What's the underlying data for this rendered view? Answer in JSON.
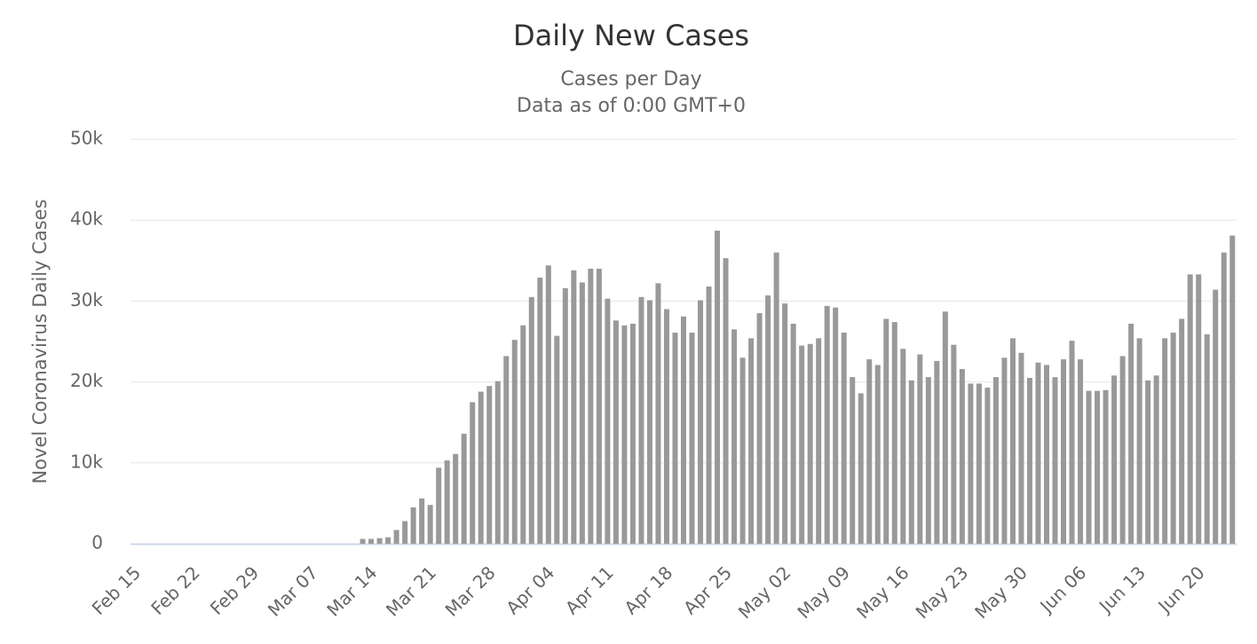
{
  "chart_data": {
    "type": "bar",
    "title": "Daily New Cases",
    "subtitle": [
      "Cases per Day",
      "Data as of 0:00 GMT+0"
    ],
    "y_label": "Novel Coronavirus Daily Cases",
    "categories": [
      "Feb 15",
      null,
      null,
      null,
      null,
      null,
      null,
      "Feb 22",
      null,
      null,
      null,
      null,
      null,
      null,
      "Feb 29",
      null,
      null,
      null,
      null,
      null,
      null,
      "Mar 07",
      null,
      null,
      null,
      null,
      null,
      null,
      "Mar 14",
      null,
      null,
      null,
      null,
      null,
      null,
      "Mar 21",
      null,
      null,
      null,
      null,
      null,
      null,
      "Mar 28",
      null,
      null,
      null,
      null,
      null,
      null,
      "Apr 04",
      null,
      null,
      null,
      null,
      null,
      null,
      "Apr 11",
      null,
      null,
      null,
      null,
      null,
      null,
      "Apr 18",
      null,
      null,
      null,
      null,
      null,
      null,
      "Apr 25",
      null,
      null,
      null,
      null,
      null,
      null,
      "May 02",
      null,
      null,
      null,
      null,
      null,
      null,
      "May 09",
      null,
      null,
      null,
      null,
      null,
      null,
      "May 16",
      null,
      null,
      null,
      null,
      null,
      null,
      "May 23",
      null,
      null,
      null,
      null,
      null,
      null,
      "May 30",
      null,
      null,
      null,
      null,
      null,
      null,
      "Jun 06",
      null,
      null,
      null,
      null,
      null,
      null,
      "Jun 13",
      null,
      null,
      null,
      null,
      null,
      null,
      "Jun 20",
      null,
      null,
      null,
      null
    ],
    "values": [
      0,
      0,
      0,
      0,
      0,
      0,
      0,
      0,
      0,
      0,
      0,
      0,
      0,
      0,
      0,
      0,
      0,
      0,
      0,
      0,
      0,
      0,
      0,
      0,
      0,
      0,
      0,
      600,
      600,
      700,
      800,
      1700,
      2800,
      4500,
      5600,
      4800,
      9400,
      10300,
      11100,
      13600,
      17500,
      18800,
      19500,
      20100,
      23200,
      25200,
      27000,
      30500,
      32900,
      34400,
      25700,
      31600,
      33800,
      32300,
      34000,
      34000,
      30300,
      27600,
      27000,
      27200,
      30500,
      30100,
      32200,
      29000,
      26100,
      28100,
      26100,
      30100,
      31800,
      38700,
      35300,
      26500,
      23000,
      25400,
      28500,
      30700,
      36000,
      29700,
      27200,
      24500,
      24700,
      25400,
      29400,
      29200,
      26100,
      20600,
      18600,
      22800,
      22100,
      27800,
      27400,
      24100,
      20200,
      23400,
      20600,
      22600,
      28700,
      24600,
      21600,
      19800,
      19800,
      19300,
      20600,
      23000,
      25400,
      23600,
      20500,
      22400,
      22100,
      20600,
      22800,
      25100,
      22800,
      18900,
      18900,
      19000,
      20800,
      23200,
      27200,
      25400,
      20200,
      20800,
      25400,
      26100,
      27800,
      33300,
      33300,
      25900,
      31400,
      36000,
      38100
    ],
    "color": "#999999",
    "ylim": [
      0,
      50000
    ],
    "yticks": [
      0,
      {
        "value": 10000,
        "label": "10k"
      },
      {
        "value": 20000,
        "label": "20k"
      },
      {
        "value": 30000,
        "label": "30k"
      },
      {
        "value": 40000,
        "label": "40k"
      },
      {
        "value": 50000,
        "label": "50k"
      }
    ],
    "grid": true
  }
}
